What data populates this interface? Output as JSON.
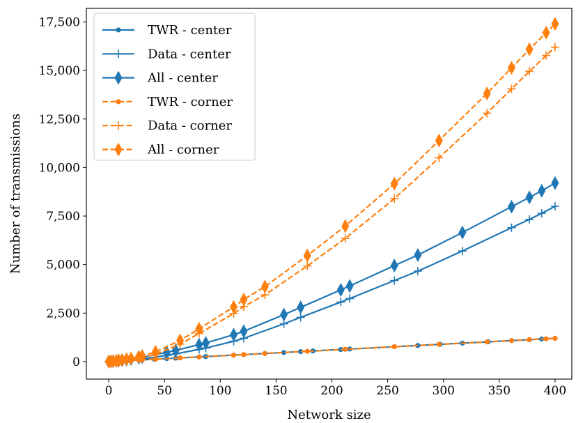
{
  "chart_data": {
    "type": "line",
    "title": "",
    "xlabel": "Network size",
    "ylabel": "Number of transmissions",
    "xlim": [
      -20,
      415
    ],
    "ylim": [
      -900,
      18200
    ],
    "xticks": [
      0,
      50,
      100,
      150,
      200,
      250,
      300,
      350,
      400
    ],
    "yticks": [
      0,
      2500,
      5000,
      7500,
      10000,
      12500,
      15000,
      17500
    ],
    "ytick_labels": [
      "0",
      "2,500",
      "5,000",
      "7,500",
      "10,000",
      "12,500",
      "15,000",
      "17,500"
    ],
    "grid": false,
    "legend_position": "top-left",
    "series": [
      {
        "name": "TWR - center",
        "color": "#1f77b4",
        "linestyle": "solid",
        "marker": "circle",
        "x": [
          0,
          2,
          4,
          7,
          9,
          12,
          16,
          20,
          27,
          30,
          41,
          52,
          60,
          81,
          87,
          112,
          121,
          140,
          157,
          172,
          183,
          208,
          216,
          256,
          277,
          297,
          317,
          340,
          361,
          377,
          388,
          400
        ],
        "y": [
          0,
          6,
          12,
          21,
          27,
          36,
          48,
          60,
          81,
          90,
          123,
          156,
          180,
          243,
          261,
          336,
          363,
          420,
          471,
          516,
          549,
          624,
          648,
          768,
          831,
          891,
          951,
          1020,
          1083,
          1131,
          1164,
          1200
        ]
      },
      {
        "name": "Data - center",
        "color": "#1f77b4",
        "linestyle": "solid",
        "marker": "plus",
        "x": [
          0,
          2,
          4,
          7,
          9,
          12,
          16,
          20,
          27,
          30,
          52,
          60,
          81,
          87,
          112,
          121,
          157,
          172,
          208,
          216,
          256,
          277,
          317,
          361,
          377,
          388,
          400
        ],
        "y": [
          0,
          3,
          8,
          16,
          22,
          34,
          52,
          72,
          115,
          135,
          320,
          400,
          630,
          700,
          1050,
          1200,
          1950,
          2280,
          3070,
          3250,
          4180,
          4660,
          5700,
          6900,
          7330,
          7640,
          8000
        ]
      },
      {
        "name": "All - center",
        "color": "#1f77b4",
        "linestyle": "solid",
        "marker": "diamond",
        "x": [
          0,
          2,
          4,
          7,
          9,
          12,
          16,
          20,
          27,
          30,
          52,
          60,
          81,
          87,
          112,
          121,
          157,
          172,
          208,
          216,
          256,
          277,
          317,
          361,
          377,
          388,
          400
        ],
        "y": [
          0,
          9,
          20,
          37,
          49,
          70,
          100,
          132,
          196,
          225,
          476,
          580,
          873,
          961,
          1386,
          1563,
          2421,
          2796,
          3694,
          3898,
          4948,
          5491,
          6651,
          7983,
          8461,
          8804,
          9200
        ]
      },
      {
        "name": "TWR - corner",
        "color": "#ff7f0e",
        "linestyle": "dashed",
        "marker": "circle",
        "x": [
          0,
          2,
          4,
          7,
          9,
          12,
          16,
          20,
          27,
          30,
          42,
          64,
          81,
          112,
          121,
          140,
          178,
          212,
          256,
          296,
          339,
          361,
          377,
          392,
          400
        ],
        "y": [
          0,
          6,
          12,
          21,
          27,
          36,
          48,
          60,
          81,
          90,
          126,
          192,
          243,
          336,
          363,
          420,
          534,
          636,
          768,
          888,
          1017,
          1083,
          1131,
          1176,
          1200
        ]
      },
      {
        "name": "Data - corner",
        "color": "#ff7f0e",
        "linestyle": "dashed",
        "marker": "plus",
        "x": [
          0,
          2,
          4,
          7,
          9,
          12,
          16,
          20,
          27,
          30,
          42,
          64,
          81,
          112,
          121,
          140,
          178,
          212,
          256,
          296,
          339,
          361,
          377,
          392,
          400
        ],
        "y": [
          0,
          4,
          10,
          22,
          32,
          48,
          75,
          105,
          170,
          200,
          380,
          900,
          1450,
          2480,
          2840,
          3440,
          4930,
          6350,
          8400,
          10500,
          12800,
          14050,
          14960,
          15770,
          16200
        ]
      },
      {
        "name": "All - corner",
        "color": "#ff7f0e",
        "linestyle": "dashed",
        "marker": "diamond",
        "x": [
          0,
          2,
          4,
          7,
          9,
          12,
          16,
          20,
          27,
          30,
          42,
          64,
          81,
          112,
          121,
          140,
          178,
          212,
          256,
          296,
          339,
          361,
          377,
          392,
          400
        ],
        "y": [
          0,
          10,
          22,
          43,
          59,
          84,
          123,
          165,
          251,
          290,
          506,
          1092,
          1693,
          2816,
          3203,
          3860,
          5464,
          6986,
          9168,
          11388,
          13817,
          15133,
          16091,
          16946,
          17400
        ]
      }
    ]
  }
}
